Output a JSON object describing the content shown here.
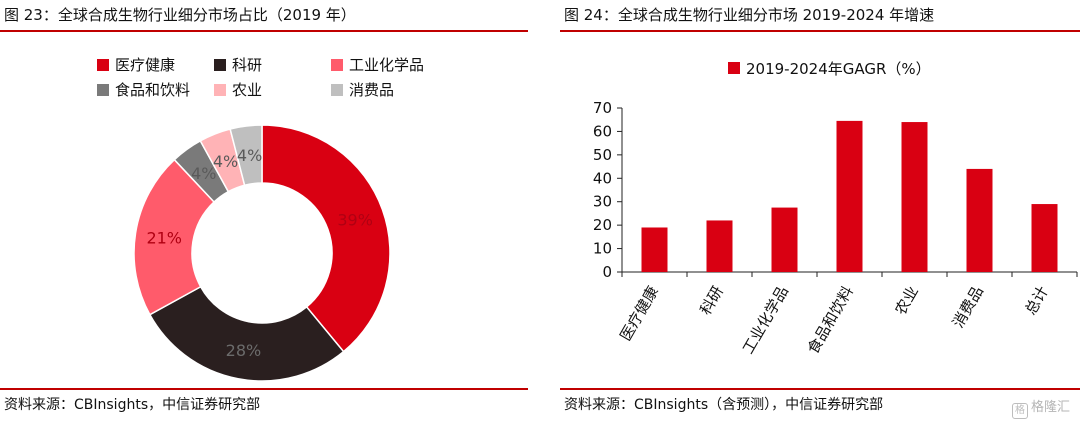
{
  "left": {
    "title": "图 23：全球合成生物行业细分市场占比（2019 年）",
    "source": "资料来源：CBInsights，中信证券研究部"
  },
  "right": {
    "title": "图 24：全球合成生物行业细分市场 2019-2024 年增速",
    "source": "资料来源：CBInsights（含预测），中信证券研究部"
  },
  "watermark": {
    "icon": "格",
    "text": "格隆汇"
  },
  "chart_data": [
    {
      "type": "pie",
      "donut": true,
      "title": "",
      "legend_position": "top",
      "series": [
        {
          "values": [
            39,
            28,
            21,
            4,
            4,
            4
          ]
        }
      ],
      "categories": [
        "医疗健康",
        "科研",
        "工业化学品",
        "食品和饮料",
        "农业",
        "消费品"
      ],
      "labels": [
        "39%",
        "28%",
        "21%",
        "4%",
        "4%",
        "4%"
      ],
      "colors": [
        "#d90012",
        "#2a1f1f",
        "#ff5b6b",
        "#7a7a7a",
        "#ffb3b6",
        "#bfbfbf"
      ],
      "label_colors": [
        "#b00012",
        "#6b6b6b",
        "#b00012",
        "#5a5a5a",
        "#5a5a5a",
        "#5a5a5a"
      ]
    },
    {
      "type": "bar",
      "title": "",
      "legend_position": "top",
      "series": [
        {
          "name": "2019-2024年GAGR（%）",
          "values": [
            19,
            22,
            27.5,
            64.5,
            64,
            44,
            29
          ],
          "color": "#d90012"
        }
      ],
      "categories": [
        "医疗健康",
        "科研",
        "工业化学品",
        "食品和饮料",
        "农业",
        "消费品",
        "总计"
      ],
      "ylim": [
        0,
        70
      ],
      "yticks": [
        "0",
        "10",
        "20",
        "30",
        "40",
        "50",
        "60",
        "70"
      ],
      "grid": false
    }
  ]
}
